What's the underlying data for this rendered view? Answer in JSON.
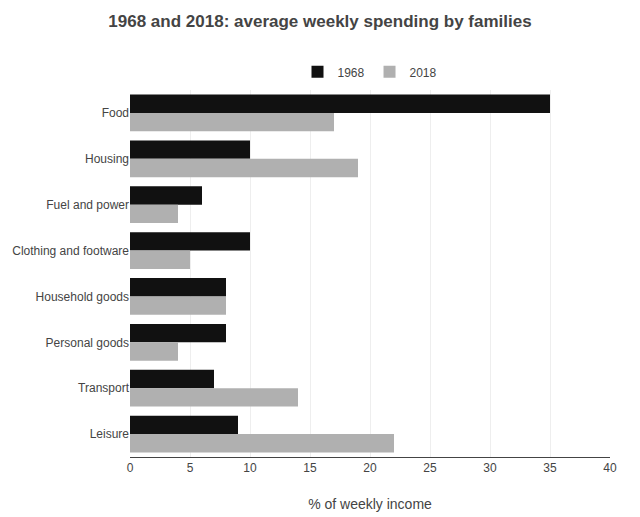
{
  "chart_data": {
    "type": "bar",
    "orientation": "horizontal",
    "title": "1968 and 2018: average weekly spending by families",
    "xlabel": "% of weekly income",
    "categories": [
      "Food",
      "Housing",
      "Fuel and power",
      "Clothing and footware",
      "Household goods",
      "Personal goods",
      "Transport",
      "Leisure"
    ],
    "series": [
      {
        "name": "1968",
        "color": "#111111",
        "values": [
          35,
          10,
          6,
          10,
          8,
          8,
          7,
          9
        ]
      },
      {
        "name": "2018",
        "color": "#b0b0b0",
        "values": [
          17,
          19,
          4,
          5,
          8,
          4,
          14,
          22
        ]
      }
    ],
    "xlim": [
      0,
      40
    ],
    "xticks": [
      0,
      5,
      10,
      15,
      20,
      25,
      30,
      35,
      40
    ],
    "grid": true,
    "legend": "top"
  }
}
